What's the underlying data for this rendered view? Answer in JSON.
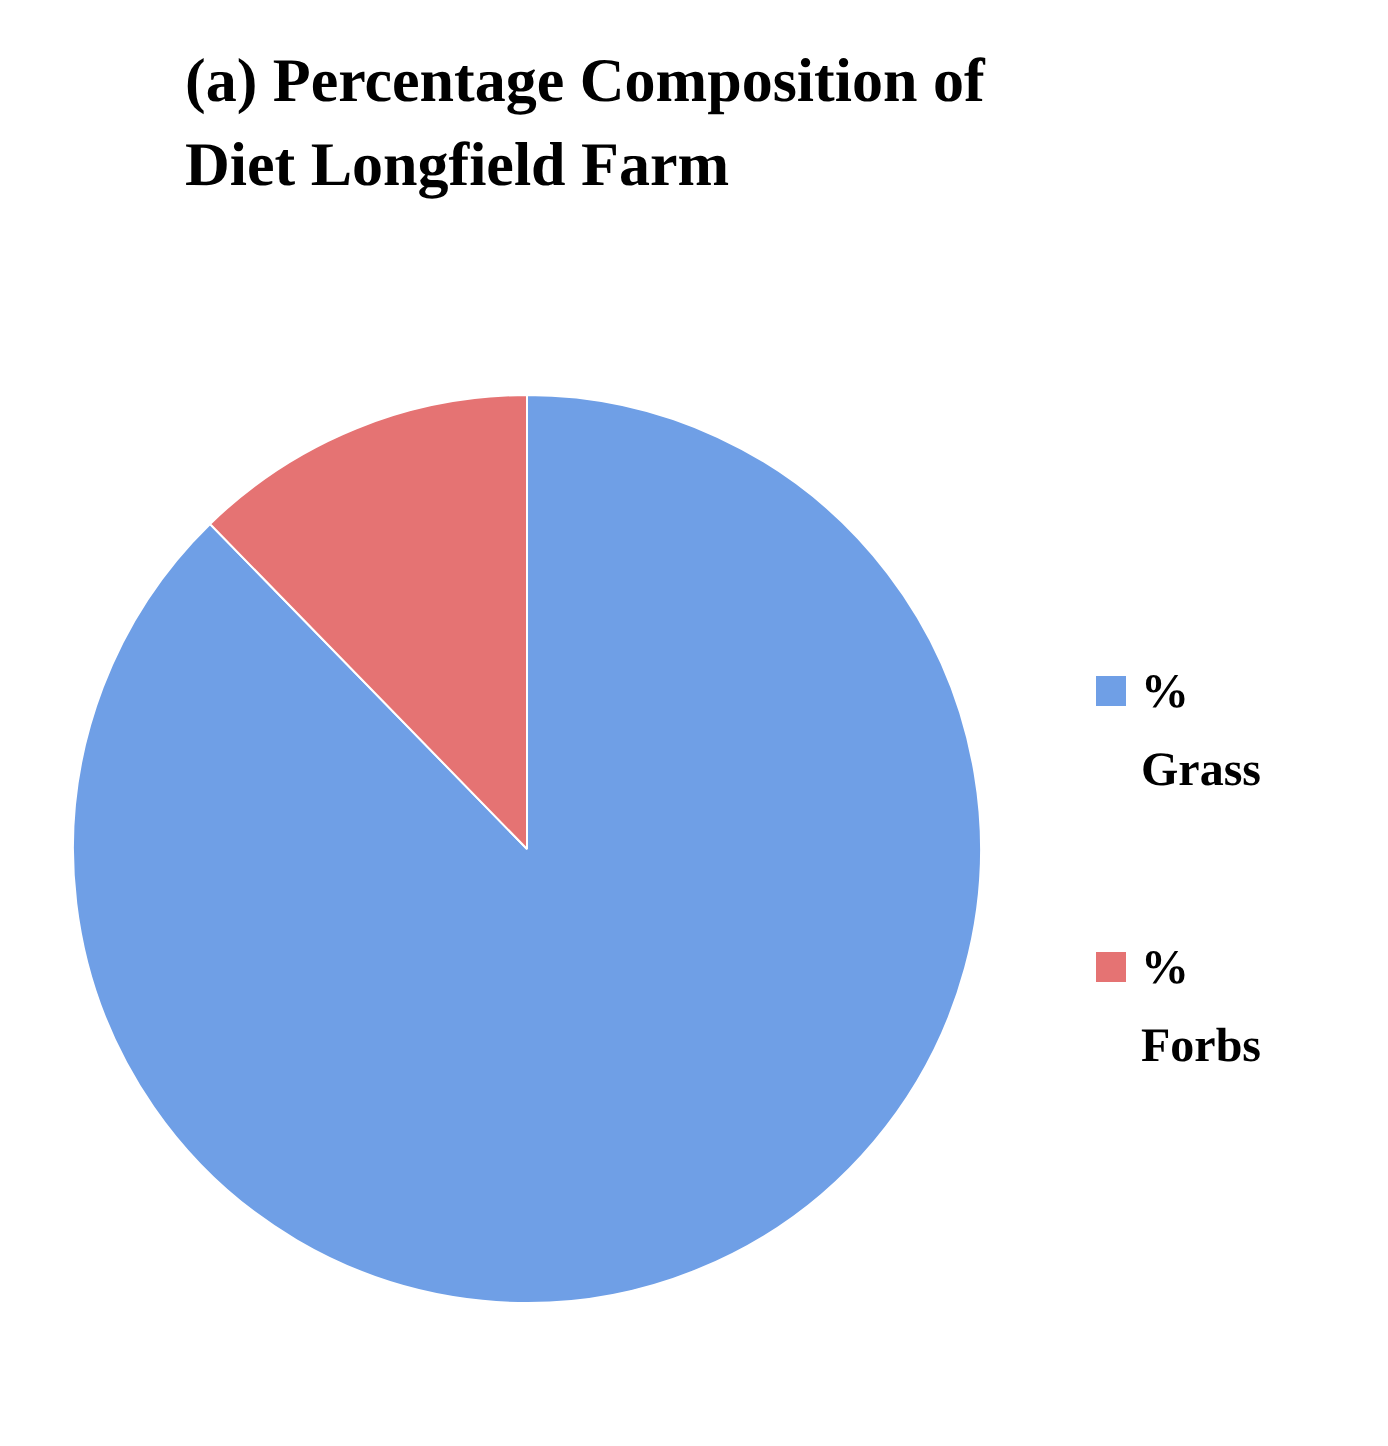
{
  "chart_data": {
    "type": "pie",
    "title": "(a) Percentage Composition of Diet Longfield Farm",
    "categories": [
      "% Grass",
      "% Forbs"
    ],
    "values": [
      87.7,
      12.3
    ],
    "colors": [
      "#6f9fe6",
      "#e57373"
    ],
    "legend": "right"
  }
}
